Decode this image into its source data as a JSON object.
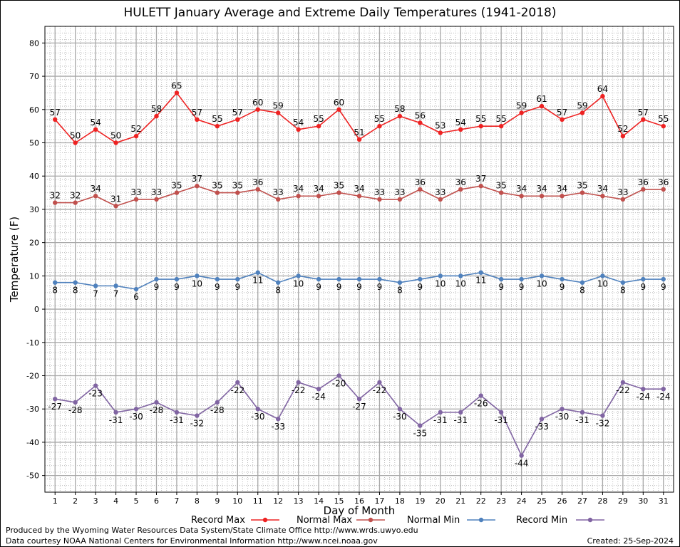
{
  "chart_data": {
    "type": "line",
    "title": "HULETT January Average and Extreme Daily Temperatures (1941-2018)",
    "xlabel": "Day of Month",
    "ylabel": "Temperature (F)",
    "xlim": [
      1,
      31
    ],
    "ylim": [
      -55,
      85
    ],
    "yticks": [
      -50,
      -40,
      -30,
      -20,
      -10,
      0,
      10,
      20,
      30,
      40,
      50,
      60,
      70,
      80
    ],
    "x": [
      1,
      2,
      3,
      4,
      5,
      6,
      7,
      8,
      9,
      10,
      11,
      12,
      13,
      14,
      15,
      16,
      17,
      18,
      19,
      20,
      21,
      22,
      23,
      24,
      25,
      26,
      27,
      28,
      29,
      30,
      31
    ],
    "grid": true,
    "legend_position": "bottom",
    "series": [
      {
        "name": "Record Max",
        "color": "#ee2222",
        "label_position": "above",
        "values": [
          57,
          50,
          54,
          50,
          52,
          58,
          65,
          57,
          55,
          57,
          60,
          59,
          54,
          55,
          60,
          51,
          55,
          58,
          56,
          53,
          54,
          55,
          55,
          59,
          61,
          57,
          59,
          64,
          52,
          57,
          55
        ]
      },
      {
        "name": "Normal Max",
        "color": "#c0504d",
        "label_position": "above",
        "values": [
          32,
          32,
          34,
          31,
          33,
          33,
          35,
          37,
          35,
          35,
          36,
          33,
          34,
          34,
          35,
          34,
          33,
          33,
          36,
          33,
          36,
          37,
          35,
          34,
          34,
          34,
          35,
          34,
          33,
          36,
          36
        ]
      },
      {
        "name": "Normal Min",
        "color": "#4f81bd",
        "label_position": "below",
        "values": [
          8,
          8,
          7,
          7,
          6,
          9,
          9,
          10,
          9,
          9,
          11,
          8,
          10,
          9,
          9,
          9,
          9,
          8,
          9,
          10,
          10,
          11,
          9,
          9,
          10,
          9,
          8,
          10,
          8,
          9,
          9
        ]
      },
      {
        "name": "Record Min",
        "color": "#8064a2",
        "label_position": "below",
        "values": [
          -27,
          -28,
          -23,
          -31,
          -30,
          -28,
          -31,
          -32,
          -28,
          -22,
          -30,
          -33,
          -22,
          -24,
          -20,
          -27,
          -22,
          -30,
          -35,
          -31,
          -31,
          -26,
          -31,
          -44,
          -33,
          -30,
          -31,
          -32,
          -22,
          -24,
          -24
        ]
      }
    ]
  },
  "footer": {
    "produced_by": "Produced by the Wyoming Water Resources Data System/State Climate Office http://www.wrds.uwyo.edu",
    "data_courtesy": "Data courtesy NOAA National Centers for Environmental Information http://www.ncei.noaa.gov",
    "created": "Created:  25-Sep-2024"
  }
}
